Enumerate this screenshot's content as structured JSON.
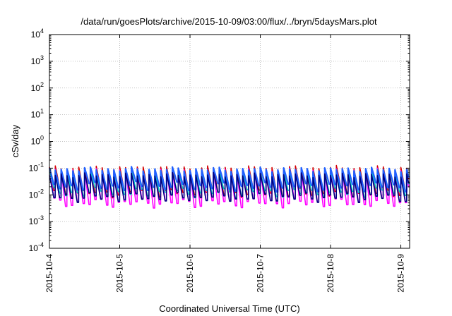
{
  "chart_data": {
    "type": "line",
    "title": "/data/run/goesPlots/archive/2015-10-09/03:00/flux/../bryn/5daysMars.plot",
    "xlabel": "Coordinated Universal Time (UTC)",
    "ylabel": "cSv/day",
    "yscale": "log",
    "ylim": [
      0.0001,
      10000
    ],
    "xlim": [
      "2015-10-04",
      "2015-10-09T03:00"
    ],
    "grid": true,
    "y_ticks": [
      {
        "value": 0.0001,
        "mantissa": "10",
        "exp": "-4"
      },
      {
        "value": 0.001,
        "mantissa": "10",
        "exp": "-3"
      },
      {
        "value": 0.01,
        "mantissa": "10",
        "exp": "-2"
      },
      {
        "value": 0.1,
        "mantissa": "10",
        "exp": "-1"
      },
      {
        "value": 1,
        "mantissa": "10",
        "exp": "0"
      },
      {
        "value": 10,
        "mantissa": "10",
        "exp": "1"
      },
      {
        "value": 100,
        "mantissa": "10",
        "exp": "2"
      },
      {
        "value": 1000,
        "mantissa": "10",
        "exp": "3"
      },
      {
        "value": 10000,
        "mantissa": "10",
        "exp": "4"
      }
    ],
    "x_ticks": [
      {
        "label": "2015-10-4",
        "day": 0
      },
      {
        "label": "2015-10-5",
        "day": 1
      },
      {
        "label": "2015-10-6",
        "day": 2
      },
      {
        "label": "2015-10-7",
        "day": 3
      },
      {
        "label": "2015-10-8",
        "day": 4
      },
      {
        "label": "2015-10-9",
        "day": 5
      }
    ],
    "x_end_day": 5.125,
    "periods_per_day": 12,
    "series": [
      {
        "color": "#d40000",
        "peak": 0.1,
        "trough": 0.012
      },
      {
        "color": "#ff00ff",
        "peak": 0.08,
        "trough": 0.005
      },
      {
        "color": "#00c8c8",
        "peak": 0.065,
        "trough": 0.012
      },
      {
        "color": "#2060ff",
        "peak": 0.09,
        "trough": 0.02
      },
      {
        "color": "#000080",
        "peak": 0.055,
        "trough": 0.008
      }
    ]
  }
}
